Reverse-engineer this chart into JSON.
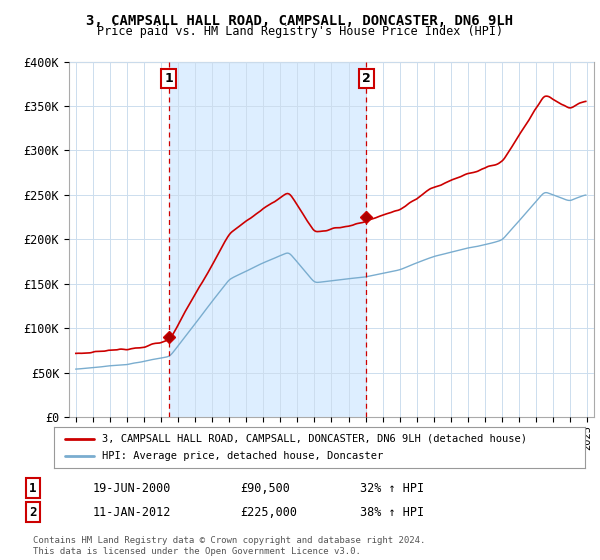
{
  "title": "3, CAMPSALL HALL ROAD, CAMPSALL, DONCASTER, DN6 9LH",
  "subtitle": "Price paid vs. HM Land Registry's House Price Index (HPI)",
  "ylim": [
    0,
    400000
  ],
  "yticks": [
    0,
    50000,
    100000,
    150000,
    200000,
    250000,
    300000,
    350000,
    400000
  ],
  "ytick_labels": [
    "£0",
    "£50K",
    "£100K",
    "£150K",
    "£200K",
    "£250K",
    "£300K",
    "£350K",
    "£400K"
  ],
  "legend_line1": "3, CAMPSALL HALL ROAD, CAMPSALL, DONCASTER, DN6 9LH (detached house)",
  "legend_line2": "HPI: Average price, detached house, Doncaster",
  "line1_color": "#cc0000",
  "line2_color": "#7aadcf",
  "shade_color": "#ddeeff",
  "annotation1_date": "19-JUN-2000",
  "annotation1_price": "£90,500",
  "annotation1_hpi": "32% ↑ HPI",
  "annotation2_date": "11-JAN-2012",
  "annotation2_price": "£225,000",
  "annotation2_hpi": "38% ↑ HPI",
  "footer": "Contains HM Land Registry data © Crown copyright and database right 2024.\nThis data is licensed under the Open Government Licence v3.0.",
  "background_color": "#ffffff",
  "grid_color": "#ccddee",
  "sale1_t": 2000.458,
  "sale2_t": 2012.042,
  "sale1_price": 90500,
  "sale2_price": 225000
}
